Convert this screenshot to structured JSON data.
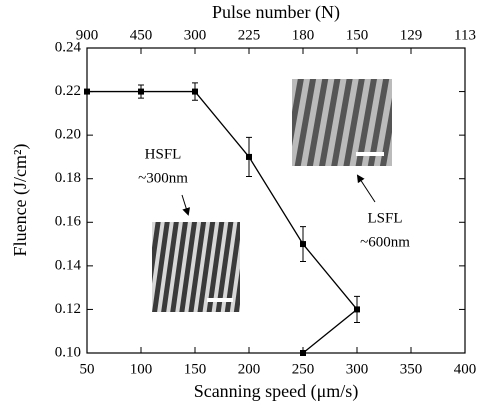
{
  "chart_data": {
    "type": "line",
    "x_label": "Scanning speed (μm/s)",
    "y_label": "Fluence (J/cm²)",
    "x2_label": "Pulse number (N)",
    "x": [
      50,
      100,
      150,
      200,
      250,
      300,
      250
    ],
    "series": [
      {
        "color": "#000000",
        "values": [
          0.22,
          0.22,
          0.22,
          0.19,
          0.15,
          0.12,
          0.1
        ],
        "errors": [
          null,
          0.003,
          0.004,
          0.009,
          0.008,
          0.006,
          null
        ]
      }
    ],
    "xlim": [
      50,
      400
    ],
    "ylim": [
      0.1,
      0.24
    ],
    "xticks": [
      50,
      100,
      150,
      200,
      250,
      300,
      350,
      400
    ],
    "yticks": [
      {
        "value": 0.1,
        "label": "0.10"
      },
      0.12,
      0.14,
      0.16,
      0.18,
      {
        "value": 0.2,
        "label": "0.20"
      },
      0.22,
      0.24
    ],
    "x2ticks": [
      {
        "value": 50,
        "label": "900"
      },
      {
        "value": 100,
        "label": "450"
      },
      {
        "value": 150,
        "label": "300"
      },
      {
        "value": 200,
        "label": "225"
      },
      {
        "value": 250,
        "label": "180"
      },
      {
        "value": 300,
        "label": "150"
      },
      {
        "value": 350,
        "label": "129"
      },
      {
        "value": 400,
        "label": "113"
      }
    ],
    "annotations": [
      "HSFL",
      "~300nm",
      "LSFL",
      "~600nm"
    ]
  }
}
